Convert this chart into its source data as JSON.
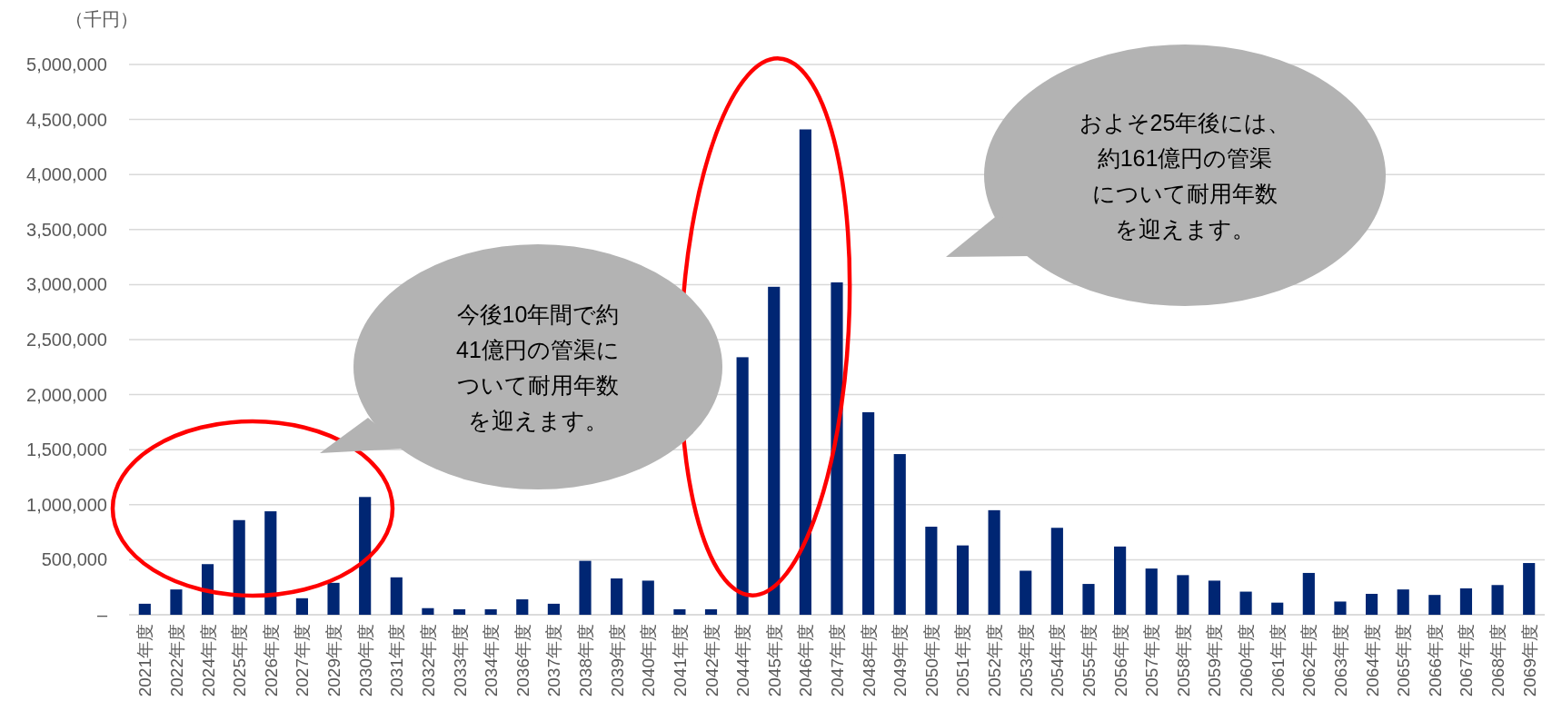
{
  "chart_data": {
    "type": "bar",
    "ylabel": "（千円）",
    "categories": [
      "2021年度",
      "2022年度",
      "2024年度",
      "2025年度",
      "2026年度",
      "2027年度",
      "2029年度",
      "2030年度",
      "2031年度",
      "2032年度",
      "2033年度",
      "2034年度",
      "2036年度",
      "2037年度",
      "2038年度",
      "2039年度",
      "2040年度",
      "2041年度",
      "2042年度",
      "2044年度",
      "2045年度",
      "2046年度",
      "2047年度",
      "2048年度",
      "2049年度",
      "2050年度",
      "2051年度",
      "2052年度",
      "2053年度",
      "2054年度",
      "2055年度",
      "2056年度",
      "2057年度",
      "2058年度",
      "2059年度",
      "2060年度",
      "2061年度",
      "2062年度",
      "2063年度",
      "2064年度",
      "2065年度",
      "2066年度",
      "2067年度",
      "2068年度",
      "2069年度"
    ],
    "values": [
      100000,
      230000,
      460000,
      860000,
      940000,
      150000,
      290000,
      1070000,
      340000,
      60000,
      50000,
      50000,
      140000,
      100000,
      490000,
      330000,
      310000,
      50000,
      50000,
      2340000,
      2980000,
      4410000,
      3020000,
      1840000,
      1460000,
      800000,
      630000,
      950000,
      400000,
      790000,
      280000,
      620000,
      420000,
      360000,
      310000,
      210000,
      110000,
      380000,
      120000,
      190000,
      230000,
      180000,
      240000,
      270000,
      470000
    ],
    "color": "#002673",
    "ylim": [
      0,
      5000000
    ],
    "yticks": [
      {
        "value": 0,
        "label": "–"
      },
      {
        "value": 500000,
        "label": "500,000"
      },
      {
        "value": 1000000,
        "label": "1,000,000"
      },
      {
        "value": 1500000,
        "label": "1,500,000"
      },
      {
        "value": 2000000,
        "label": "2,000,000"
      },
      {
        "value": 2500000,
        "label": "2,500,000"
      },
      {
        "value": 3000000,
        "label": "3,000,000"
      },
      {
        "value": 3500000,
        "label": "3,500,000"
      },
      {
        "value": 4000000,
        "label": "4,000,000"
      },
      {
        "value": 4500000,
        "label": "4,500,000"
      },
      {
        "value": 5000000,
        "label": "5,000,000"
      }
    ],
    "grid": "y",
    "annotations": [
      "今後10年間で約41億円の管渠について耐用年数を迎えます。",
      "およそ25年後には、約161億円の管渠について耐用年数を迎えます。"
    ]
  }
}
